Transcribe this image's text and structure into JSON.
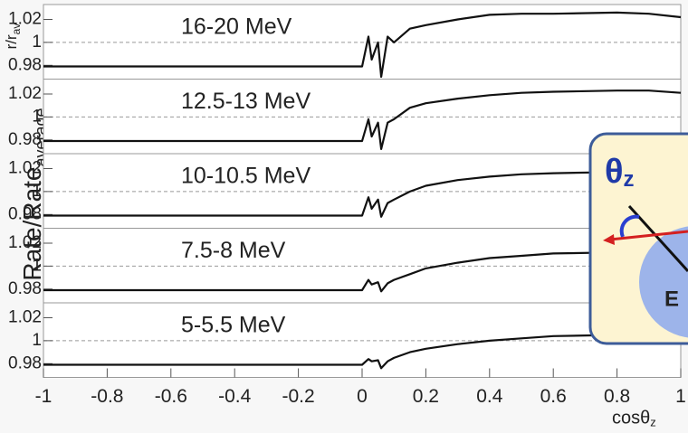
{
  "y_label": {
    "main": "Rate/Rate",
    "sub": "average"
  },
  "inset": {
    "symbol": "θ",
    "symbol_sub": "z",
    "body": "E"
  },
  "chart_data": [
    {
      "type": "line",
      "label": "16-20 MeV",
      "corner_label": {
        "main": "r/r",
        "sub": "av"
      },
      "color": "#111111",
      "x": [
        -1,
        0,
        0.02,
        0.03,
        0.05,
        0.06,
        0.08,
        0.1,
        0.15,
        0.2,
        0.3,
        0.4,
        0.5,
        0.6,
        0.8,
        0.9,
        1
      ],
      "values": [
        0.979,
        0.979,
        1.005,
        0.985,
        1.0,
        0.97,
        1.005,
        1.0,
        1.012,
        1.015,
        1.02,
        1.024,
        1.025,
        1.025,
        1.026,
        1.025,
        1.022
      ],
      "xlim": [
        -1,
        1
      ],
      "ylim": [
        0.968,
        1.033
      ],
      "yticks": [
        0.98,
        1,
        1.02
      ],
      "hline": 1
    },
    {
      "type": "line",
      "label": "12.5-13 MeV",
      "color": "#111111",
      "x": [
        -1,
        0,
        0.02,
        0.03,
        0.05,
        0.06,
        0.08,
        0.1,
        0.15,
        0.2,
        0.3,
        0.4,
        0.5,
        0.6,
        0.8,
        0.9,
        1
      ],
      "values": [
        0.979,
        0.979,
        0.998,
        0.983,
        0.995,
        0.972,
        0.995,
        0.998,
        1.008,
        1.012,
        1.016,
        1.019,
        1.021,
        1.022,
        1.023,
        1.023,
        1.021
      ],
      "xlim": [
        -1,
        1
      ],
      "ylim": [
        0.968,
        1.033
      ],
      "yticks": [
        0.98,
        1,
        1.02
      ],
      "hline": 1
    },
    {
      "type": "line",
      "label": "10-10.5 MeV",
      "color": "#111111",
      "x": [
        -1,
        0,
        0.02,
        0.03,
        0.05,
        0.06,
        0.08,
        0.1,
        0.15,
        0.2,
        0.3,
        0.4,
        0.5,
        0.6,
        0.8,
        0.9,
        1
      ],
      "values": [
        0.979,
        0.979,
        0.995,
        0.985,
        0.993,
        0.978,
        0.99,
        0.993,
        1.0,
        1.005,
        1.01,
        1.013,
        1.015,
        1.016,
        1.017,
        1.017,
        1.017
      ],
      "xlim": [
        -1,
        1
      ],
      "ylim": [
        0.968,
        1.033
      ],
      "yticks": [
        0.98,
        1,
        1.02
      ],
      "hline": 1
    },
    {
      "type": "line",
      "label": "7.5-8 MeV",
      "color": "#111111",
      "x": [
        -1,
        0,
        0.02,
        0.03,
        0.05,
        0.06,
        0.08,
        0.1,
        0.15,
        0.2,
        0.3,
        0.4,
        0.5,
        0.6,
        0.8,
        0.9,
        1
      ],
      "values": [
        0.979,
        0.979,
        0.988,
        0.984,
        0.986,
        0.978,
        0.985,
        0.988,
        0.993,
        0.998,
        1.003,
        1.007,
        1.009,
        1.011,
        1.012,
        1.012,
        1.012
      ],
      "xlim": [
        -1,
        1
      ],
      "ylim": [
        0.968,
        1.033
      ],
      "yticks": [
        0.98,
        1,
        1.02
      ],
      "hline": 1
    },
    {
      "type": "line",
      "label": "5-5.5 MeV",
      "color": "#111111",
      "x": [
        -1,
        0,
        0.02,
        0.03,
        0.05,
        0.06,
        0.08,
        0.1,
        0.15,
        0.2,
        0.3,
        0.4,
        0.5,
        0.6,
        0.8,
        0.9,
        1
      ],
      "values": [
        0.979,
        0.979,
        0.984,
        0.982,
        0.983,
        0.976,
        0.982,
        0.985,
        0.99,
        0.993,
        0.997,
        1.0,
        1.002,
        1.004,
        1.005,
        1.005,
        1.005
      ],
      "xlim": [
        -1,
        1
      ],
      "ylim": [
        0.968,
        1.033
      ],
      "yticks": [
        0.98,
        1,
        1.02
      ],
      "hline": 1,
      "xticks": [
        -1,
        -0.8,
        -0.6,
        -0.4,
        -0.2,
        0,
        0.2,
        0.4,
        0.6,
        0.8,
        1
      ],
      "xlabel": {
        "main": "cosθ",
        "sub": "z"
      }
    }
  ]
}
